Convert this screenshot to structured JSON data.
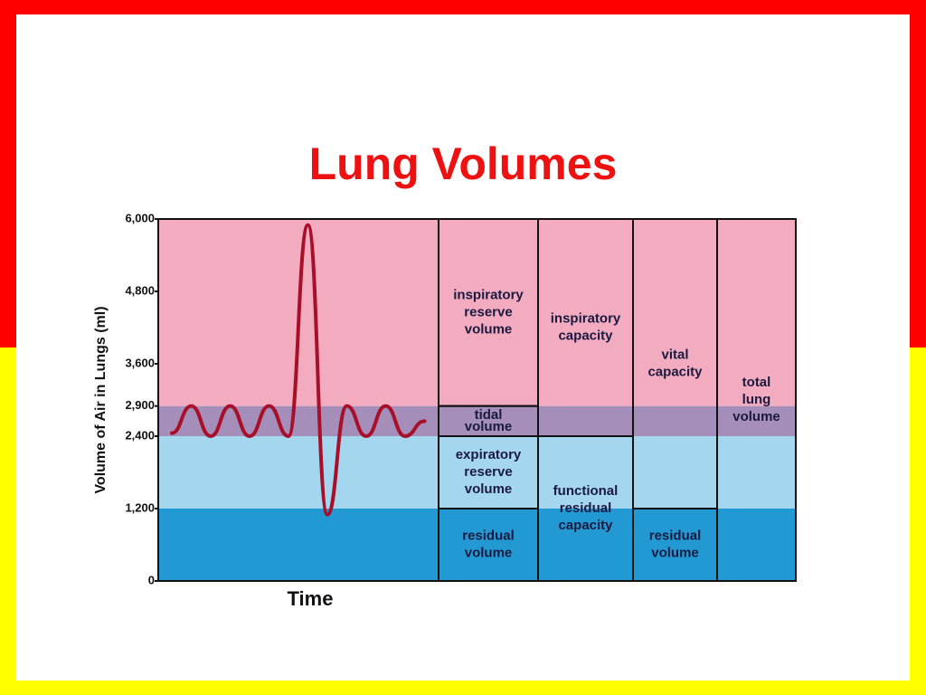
{
  "title": "Lung Volumes",
  "chart_data": {
    "type": "lung-volumes",
    "y_label": "Volume of Air in Lungs (ml)",
    "x_label": "Time",
    "ylim": [
      0,
      6000
    ],
    "yticks": [
      0,
      {
        "value": 1200,
        "label": "1,200"
      },
      {
        "value": 2400,
        "label": "2,400"
      },
      {
        "value": 2900,
        "label": "2,900"
      },
      {
        "value": 3600,
        "label": "3,600"
      },
      {
        "value": 4800,
        "label": "4,800"
      },
      {
        "value": 6000,
        "label": "6,000"
      }
    ],
    "bands": [
      {
        "from": 0,
        "to": 1200,
        "color": "#2399d4"
      },
      {
        "from": 1200,
        "to": 2400,
        "color": "#a4d6ee"
      },
      {
        "from": 2400,
        "to": 2900,
        "color": "#a58fba"
      },
      {
        "from": 2900,
        "to": 6000,
        "color": "#f3abc0"
      }
    ],
    "trace": {
      "color": "#a8102a",
      "values": [
        2450,
        2900,
        2400,
        2900,
        2400,
        2900,
        2400,
        5900,
        1100,
        2900,
        2400,
        2900,
        2400,
        2650
      ]
    },
    "columns": [
      {
        "segments": [
          {
            "label": [
              "residual",
              "volume"
            ],
            "from": 0,
            "to": 1200
          },
          {
            "label": [
              "expiratory",
              "reserve",
              "volume"
            ],
            "from": 1200,
            "to": 2400
          },
          {
            "label": [
              "tidal",
              "volume"
            ],
            "from": 2400,
            "to": 2900
          },
          {
            "label": [
              "inspiratory",
              "reserve",
              "volume"
            ],
            "from": 2900,
            "to": 6000
          }
        ]
      },
      {
        "segments": [
          {
            "label": [
              "functional",
              "residual",
              "capacity"
            ],
            "from": 0,
            "to": 2400
          },
          {
            "label": [
              "inspiratory",
              "capacity"
            ],
            "from": 2400,
            "to": 6000
          }
        ]
      },
      {
        "segments": [
          {
            "label": [
              "residual",
              "volume"
            ],
            "from": 0,
            "to": 1200
          },
          {
            "label": [
              "vital",
              "capacity"
            ],
            "from": 1200,
            "to": 6000
          }
        ]
      },
      {
        "segments": [
          {
            "label": [
              "total",
              "lung",
              "volume"
            ],
            "from": 0,
            "to": 6000
          }
        ]
      }
    ]
  }
}
